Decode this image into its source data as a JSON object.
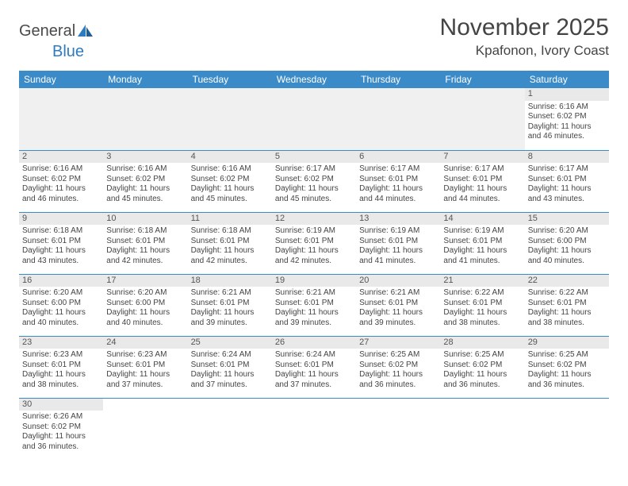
{
  "logo": {
    "text1": "General",
    "text2": "Blue"
  },
  "title": "November 2025",
  "location": "Kpafonon, Ivory Coast",
  "day_headers": [
    "Sunday",
    "Monday",
    "Tuesday",
    "Wednesday",
    "Thursday",
    "Friday",
    "Saturday"
  ],
  "colors": {
    "header_bg": "#3b8bc9",
    "header_text": "#ffffff",
    "daynum_bg": "#e9e9e9",
    "cell_border": "#3b8bc9",
    "empty_bg": "#f0f0f0",
    "text": "#444444"
  },
  "first_weekday": 6,
  "days": [
    {
      "n": 1,
      "rise": "6:16 AM",
      "set": "6:02 PM",
      "dl": "11 hours and 46 minutes."
    },
    {
      "n": 2,
      "rise": "6:16 AM",
      "set": "6:02 PM",
      "dl": "11 hours and 46 minutes."
    },
    {
      "n": 3,
      "rise": "6:16 AM",
      "set": "6:02 PM",
      "dl": "11 hours and 45 minutes."
    },
    {
      "n": 4,
      "rise": "6:16 AM",
      "set": "6:02 PM",
      "dl": "11 hours and 45 minutes."
    },
    {
      "n": 5,
      "rise": "6:17 AM",
      "set": "6:02 PM",
      "dl": "11 hours and 45 minutes."
    },
    {
      "n": 6,
      "rise": "6:17 AM",
      "set": "6:01 PM",
      "dl": "11 hours and 44 minutes."
    },
    {
      "n": 7,
      "rise": "6:17 AM",
      "set": "6:01 PM",
      "dl": "11 hours and 44 minutes."
    },
    {
      "n": 8,
      "rise": "6:17 AM",
      "set": "6:01 PM",
      "dl": "11 hours and 43 minutes."
    },
    {
      "n": 9,
      "rise": "6:18 AM",
      "set": "6:01 PM",
      "dl": "11 hours and 43 minutes."
    },
    {
      "n": 10,
      "rise": "6:18 AM",
      "set": "6:01 PM",
      "dl": "11 hours and 42 minutes."
    },
    {
      "n": 11,
      "rise": "6:18 AM",
      "set": "6:01 PM",
      "dl": "11 hours and 42 minutes."
    },
    {
      "n": 12,
      "rise": "6:19 AM",
      "set": "6:01 PM",
      "dl": "11 hours and 42 minutes."
    },
    {
      "n": 13,
      "rise": "6:19 AM",
      "set": "6:01 PM",
      "dl": "11 hours and 41 minutes."
    },
    {
      "n": 14,
      "rise": "6:19 AM",
      "set": "6:01 PM",
      "dl": "11 hours and 41 minutes."
    },
    {
      "n": 15,
      "rise": "6:20 AM",
      "set": "6:00 PM",
      "dl": "11 hours and 40 minutes."
    },
    {
      "n": 16,
      "rise": "6:20 AM",
      "set": "6:00 PM",
      "dl": "11 hours and 40 minutes."
    },
    {
      "n": 17,
      "rise": "6:20 AM",
      "set": "6:00 PM",
      "dl": "11 hours and 40 minutes."
    },
    {
      "n": 18,
      "rise": "6:21 AM",
      "set": "6:01 PM",
      "dl": "11 hours and 39 minutes."
    },
    {
      "n": 19,
      "rise": "6:21 AM",
      "set": "6:01 PM",
      "dl": "11 hours and 39 minutes."
    },
    {
      "n": 20,
      "rise": "6:21 AM",
      "set": "6:01 PM",
      "dl": "11 hours and 39 minutes."
    },
    {
      "n": 21,
      "rise": "6:22 AM",
      "set": "6:01 PM",
      "dl": "11 hours and 38 minutes."
    },
    {
      "n": 22,
      "rise": "6:22 AM",
      "set": "6:01 PM",
      "dl": "11 hours and 38 minutes."
    },
    {
      "n": 23,
      "rise": "6:23 AM",
      "set": "6:01 PM",
      "dl": "11 hours and 38 minutes."
    },
    {
      "n": 24,
      "rise": "6:23 AM",
      "set": "6:01 PM",
      "dl": "11 hours and 37 minutes."
    },
    {
      "n": 25,
      "rise": "6:24 AM",
      "set": "6:01 PM",
      "dl": "11 hours and 37 minutes."
    },
    {
      "n": 26,
      "rise": "6:24 AM",
      "set": "6:01 PM",
      "dl": "11 hours and 37 minutes."
    },
    {
      "n": 27,
      "rise": "6:25 AM",
      "set": "6:02 PM",
      "dl": "11 hours and 36 minutes."
    },
    {
      "n": 28,
      "rise": "6:25 AM",
      "set": "6:02 PM",
      "dl": "11 hours and 36 minutes."
    },
    {
      "n": 29,
      "rise": "6:25 AM",
      "set": "6:02 PM",
      "dl": "11 hours and 36 minutes."
    },
    {
      "n": 30,
      "rise": "6:26 AM",
      "set": "6:02 PM",
      "dl": "11 hours and 36 minutes."
    }
  ],
  "labels": {
    "sunrise_prefix": "Sunrise: ",
    "sunset_prefix": "Sunset: ",
    "daylight_prefix": "Daylight: "
  }
}
